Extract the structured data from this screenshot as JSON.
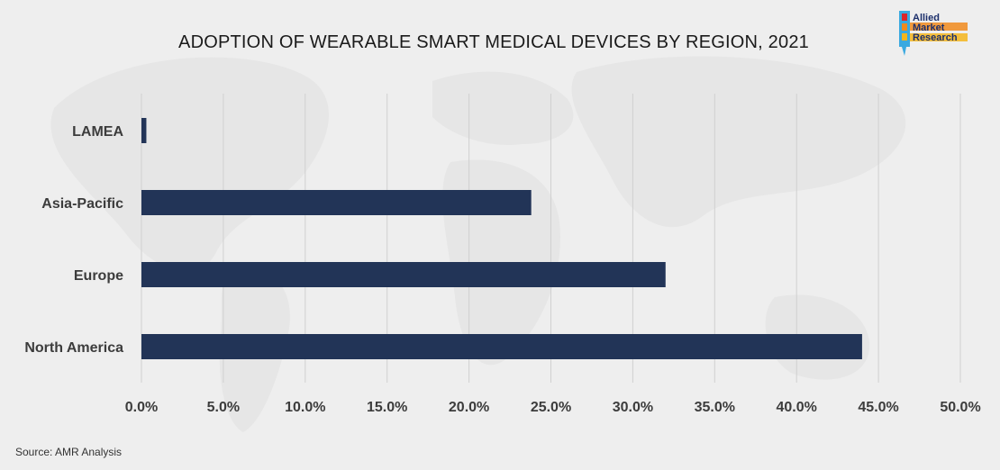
{
  "title": "ADOPTION OF WEARABLE SMART MEDICAL DEVICES BY REGION, 2021",
  "logo": {
    "lines": [
      "Allied",
      "Market",
      "Research"
    ]
  },
  "source": "Source: AMR Analysis",
  "colors": {
    "bar": "#223457",
    "gridline": "#d0d0d0",
    "background": "#eeeeee"
  },
  "chart_data": {
    "type": "bar",
    "orientation": "horizontal",
    "title": "ADOPTION OF WEARABLE SMART MEDICAL DEVICES BY REGION, 2021",
    "categories": [
      "LAMEA",
      "Asia-Pacific",
      "Europe",
      "North America"
    ],
    "values": [
      0.3,
      23.8,
      32.0,
      44.0
    ],
    "xlim": [
      0,
      50
    ],
    "x_ticks": [
      "0.0%",
      "5.0%",
      "10.0%",
      "15.0%",
      "20.0%",
      "25.0%",
      "30.0%",
      "35.0%",
      "40.0%",
      "45.0%",
      "50.0%"
    ],
    "x_tick_values": [
      0,
      5,
      10,
      15,
      20,
      25,
      30,
      35,
      40,
      45,
      50
    ],
    "grid": true,
    "xlabel": "",
    "ylabel": ""
  }
}
